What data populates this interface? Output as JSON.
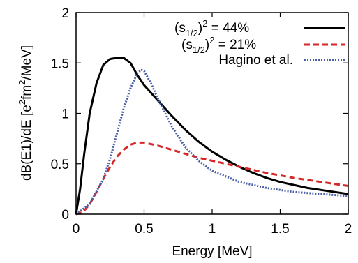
{
  "chart_data": {
    "type": "line",
    "xlabel": "Energy [MeV]",
    "ylabel_parts": {
      "a": "dB(E1)/dE [e",
      "b": "2",
      "c": "fm",
      "d": "2",
      "e": "/MeV]"
    },
    "xlim": [
      0,
      2
    ],
    "ylim": [
      0,
      2
    ],
    "xticks": [
      {
        "value": 0,
        "label": "0"
      },
      {
        "value": 0.5,
        "label": "0.5"
      },
      {
        "value": 1,
        "label": "1"
      },
      {
        "value": 1.5,
        "label": "1.5"
      },
      {
        "value": 2,
        "label": "2"
      }
    ],
    "yticks": [
      {
        "value": 0,
        "label": "0"
      },
      {
        "value": 0.5,
        "label": "0.5"
      },
      {
        "value": 1,
        "label": "1"
      },
      {
        "value": 1.5,
        "label": "1.5"
      },
      {
        "value": 2,
        "label": "2"
      }
    ],
    "grid": false,
    "legend_position": "top-right",
    "series": [
      {
        "legend": {
          "pre": "(s",
          "sub": "1/2",
          "post": ")",
          "sup": "2",
          "rest": " = 44%"
        },
        "color": "#000000",
        "dash": "solid",
        "x": [
          0,
          0.03,
          0.06,
          0.1,
          0.15,
          0.2,
          0.25,
          0.3,
          0.35,
          0.4,
          0.45,
          0.5,
          0.6,
          0.7,
          0.8,
          0.9,
          1.0,
          1.1,
          1.2,
          1.3,
          1.4,
          1.5,
          1.6,
          1.7,
          1.8,
          1.9,
          2.0
        ],
        "y": [
          0,
          0.25,
          0.6,
          1.0,
          1.3,
          1.48,
          1.54,
          1.55,
          1.55,
          1.5,
          1.38,
          1.28,
          1.13,
          0.98,
          0.84,
          0.72,
          0.62,
          0.54,
          0.47,
          0.41,
          0.36,
          0.32,
          0.29,
          0.26,
          0.24,
          0.22,
          0.2
        ]
      },
      {
        "legend": {
          "pre": "(s",
          "sub": "1/2",
          "post": ")",
          "sup": "2",
          "rest": " = 21%"
        },
        "color": "#d62728",
        "dash": "8,5",
        "x": [
          0,
          0.05,
          0.1,
          0.15,
          0.2,
          0.25,
          0.3,
          0.35,
          0.4,
          0.45,
          0.5,
          0.6,
          0.7,
          0.8,
          0.9,
          1.0,
          1.2,
          1.4,
          1.6,
          1.8,
          2.0
        ],
        "y": [
          0,
          0.02,
          0.1,
          0.22,
          0.35,
          0.47,
          0.57,
          0.64,
          0.69,
          0.71,
          0.71,
          0.68,
          0.64,
          0.6,
          0.56,
          0.53,
          0.47,
          0.41,
          0.36,
          0.32,
          0.28
        ]
      },
      {
        "legend": {
          "pre": "Hagino et al.",
          "sub": "",
          "post": "",
          "sup": "",
          "rest": ""
        },
        "color": "#4a5fa8",
        "dash": "2,2",
        "x": [
          0,
          0.1,
          0.2,
          0.25,
          0.3,
          0.35,
          0.4,
          0.45,
          0.48,
          0.5,
          0.55,
          0.6,
          0.7,
          0.8,
          0.9,
          1.0,
          1.2,
          1.4,
          1.6,
          1.8,
          2.0
        ],
        "y": [
          0,
          0.1,
          0.35,
          0.55,
          0.8,
          1.05,
          1.25,
          1.4,
          1.43,
          1.42,
          1.3,
          1.15,
          0.88,
          0.67,
          0.53,
          0.43,
          0.32,
          0.26,
          0.22,
          0.2,
          0.18
        ]
      }
    ]
  }
}
